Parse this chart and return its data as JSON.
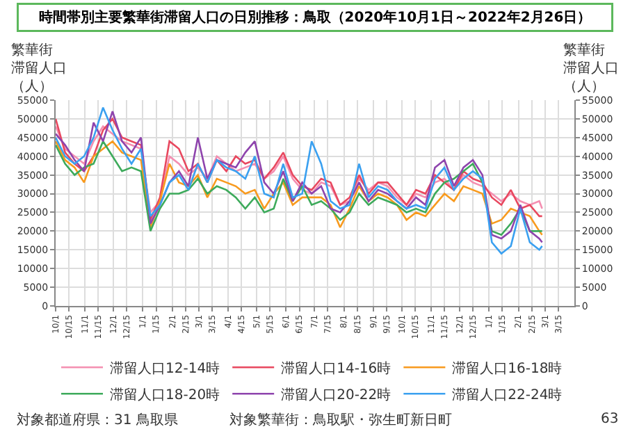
{
  "chart_data": {
    "type": "line",
    "title": "時間帯別主要繁華街滞留人口の日別推移：鳥取（2020年10月1日～2022年2月26日）",
    "ylabel": "繁華街滞留人口（人）",
    "y2label": "繁華街滞留人口（人）",
    "x": [
      "2020-10-01",
      "2020-10-11",
      "2020-10-21",
      "2020-10-31",
      "2020-11-10",
      "2020-11-20",
      "2020-11-30",
      "2020-12-10",
      "2020-12-20",
      "2020-12-30",
      "2021-01-09",
      "2021-01-19",
      "2021-01-29",
      "2021-02-08",
      "2021-02-18",
      "2021-02-28",
      "2021-03-10",
      "2021-03-20",
      "2021-03-30",
      "2021-04-09",
      "2021-04-19",
      "2021-04-29",
      "2021-05-09",
      "2021-05-19",
      "2021-05-29",
      "2021-06-08",
      "2021-06-18",
      "2021-06-28",
      "2021-07-08",
      "2021-07-18",
      "2021-07-28",
      "2021-08-07",
      "2021-08-17",
      "2021-08-27",
      "2021-09-06",
      "2021-09-16",
      "2021-09-26",
      "2021-10-06",
      "2021-10-16",
      "2021-10-26",
      "2021-11-05",
      "2021-11-15",
      "2021-11-25",
      "2021-12-05",
      "2021-12-15",
      "2021-12-25",
      "2022-01-04",
      "2022-01-14",
      "2022-01-24",
      "2022-02-03",
      "2022-02-13",
      "2022-02-23",
      "2022-02-26"
    ],
    "series": [
      {
        "name": "滞留人口12-14時",
        "color": "#f48fb1",
        "values": [
          48000,
          42000,
          40000,
          38000,
          44000,
          48000,
          46000,
          44000,
          43000,
          42000,
          25000,
          28000,
          40000,
          38000,
          35000,
          37000,
          34000,
          40000,
          38000,
          36000,
          37000,
          38000,
          34000,
          36000,
          40000,
          34000,
          31000,
          30000,
          33000,
          32000,
          27000,
          28000,
          34000,
          31000,
          33000,
          32000,
          29000,
          27000,
          30000,
          29000,
          33000,
          34000,
          31000,
          35000,
          33000,
          32000,
          30000,
          28000,
          30000,
          28000,
          27000,
          28000,
          26000
        ]
      },
      {
        "name": "滞留人口14-16時",
        "color": "#e8485f",
        "values": [
          50000,
          41000,
          38000,
          36000,
          40000,
          47000,
          50000,
          45000,
          44000,
          43000,
          23000,
          29000,
          44000,
          42000,
          36000,
          38000,
          33000,
          39000,
          36000,
          40000,
          38000,
          39000,
          34000,
          37000,
          41000,
          35000,
          32000,
          31000,
          34000,
          33000,
          27000,
          29000,
          35000,
          30000,
          33000,
          33000,
          30000,
          27000,
          31000,
          30000,
          35000,
          33000,
          31000,
          36000,
          34000,
          33000,
          29000,
          27000,
          31000,
          26000,
          27000,
          24000,
          24000
        ]
      },
      {
        "name": "滞留人口16-18時",
        "color": "#f89a1e",
        "values": [
          44000,
          39000,
          37000,
          33000,
          40000,
          42000,
          44000,
          41000,
          40000,
          39000,
          21000,
          28000,
          38000,
          33000,
          32000,
          35000,
          29000,
          34000,
          33000,
          32000,
          30000,
          31000,
          26000,
          30000,
          33000,
          27000,
          29000,
          29000,
          29000,
          27000,
          21000,
          26000,
          32000,
          28000,
          30000,
          29000,
          27000,
          23000,
          25000,
          24000,
          27000,
          30000,
          28000,
          32000,
          31000,
          30000,
          22000,
          23000,
          26000,
          25000,
          24000,
          20000,
          19000
        ]
      },
      {
        "name": "滞留人口18-20時",
        "color": "#3daa5b",
        "values": [
          43000,
          38000,
          35000,
          37000,
          38000,
          44000,
          40000,
          36000,
          37000,
          36000,
          20000,
          26000,
          30000,
          30000,
          31000,
          34000,
          30000,
          32000,
          31000,
          29000,
          26000,
          29000,
          25000,
          26000,
          34000,
          28000,
          32000,
          27000,
          28000,
          26000,
          23000,
          25000,
          30000,
          27000,
          29000,
          28000,
          27000,
          25000,
          26000,
          25000,
          30000,
          33000,
          34000,
          36000,
          38000,
          33000,
          20000,
          19000,
          22000,
          26000,
          20000,
          20000,
          20000
        ]
      },
      {
        "name": "滞留人口20-22時",
        "color": "#8e44ad",
        "values": [
          46000,
          43000,
          39000,
          36000,
          49000,
          44000,
          52000,
          44000,
          41000,
          45000,
          22000,
          27000,
          33000,
          36000,
          32000,
          45000,
          34000,
          39000,
          38000,
          37000,
          41000,
          44000,
          33000,
          30000,
          36000,
          28000,
          33000,
          30000,
          32000,
          26000,
          25000,
          28000,
          33000,
          28000,
          31000,
          30000,
          28000,
          26000,
          29000,
          27000,
          37000,
          39000,
          32000,
          37000,
          39000,
          35000,
          19000,
          18000,
          20000,
          27000,
          20000,
          18000,
          17000
        ]
      },
      {
        "name": "滞留人口22-24時",
        "color": "#3aa0f0",
        "values": [
          45000,
          40000,
          38000,
          40000,
          45000,
          53000,
          47000,
          42000,
          38000,
          42000,
          24000,
          27000,
          33000,
          35000,
          31000,
          38000,
          33000,
          39000,
          37000,
          36000,
          34000,
          40000,
          30000,
          29000,
          38000,
          29000,
          30000,
          44000,
          38000,
          28000,
          26000,
          27000,
          38000,
          29000,
          32000,
          31000,
          28000,
          26000,
          27000,
          26000,
          34000,
          37000,
          31000,
          34000,
          36000,
          34000,
          17000,
          14000,
          16000,
          26000,
          17000,
          15000,
          16000
        ]
      }
    ],
    "xlim": [
      "2020-10-01",
      "2022-04-01"
    ],
    "xticks": [
      {
        "value": "2020-10-01",
        "label": "10/1"
      },
      {
        "value": "2020-10-15",
        "label": "10/15"
      },
      {
        "value": "2020-11-01",
        "label": "11/1"
      },
      {
        "value": "2020-11-15",
        "label": "11/15"
      },
      {
        "value": "2020-12-01",
        "label": "12/1"
      },
      {
        "value": "2020-12-15",
        "label": "12/15"
      },
      {
        "value": "2021-01-01",
        "label": "1/1"
      },
      {
        "value": "2021-01-15",
        "label": "1/15"
      },
      {
        "value": "2021-02-01",
        "label": "2/1"
      },
      {
        "value": "2021-02-15",
        "label": "2/15"
      },
      {
        "value": "2021-03-01",
        "label": "3/1"
      },
      {
        "value": "2021-03-15",
        "label": "3/15"
      },
      {
        "value": "2021-04-01",
        "label": "4/1"
      },
      {
        "value": "2021-04-15",
        "label": "4/15"
      },
      {
        "value": "2021-05-01",
        "label": "5/1"
      },
      {
        "value": "2021-05-15",
        "label": "5/15"
      },
      {
        "value": "2021-06-01",
        "label": "6/1"
      },
      {
        "value": "2021-06-15",
        "label": "6/15"
      },
      {
        "value": "2021-07-01",
        "label": "7/1"
      },
      {
        "value": "2021-07-15",
        "label": "7/15"
      },
      {
        "value": "2021-08-01",
        "label": "8/1"
      },
      {
        "value": "2021-08-15",
        "label": "8/15"
      },
      {
        "value": "2021-09-01",
        "label": "9/1"
      },
      {
        "value": "2021-09-15",
        "label": "9/15"
      },
      {
        "value": "2021-10-01",
        "label": "10/1"
      },
      {
        "value": "2021-10-15",
        "label": "10/15"
      },
      {
        "value": "2021-11-01",
        "label": "11/1"
      },
      {
        "value": "2021-11-15",
        "label": "11/15"
      },
      {
        "value": "2021-12-01",
        "label": "12/1"
      },
      {
        "value": "2021-12-15",
        "label": "12/15"
      },
      {
        "value": "2022-01-01",
        "label": "1/1"
      },
      {
        "value": "2022-01-15",
        "label": "1/15"
      },
      {
        "value": "2022-02-01",
        "label": "2/1"
      },
      {
        "value": "2022-02-15",
        "label": "2/15"
      },
      {
        "value": "2022-03-01",
        "label": "3/1"
      },
      {
        "value": "2022-03-15",
        "label": "3/15"
      }
    ],
    "ylim": [
      0,
      55000
    ],
    "yticks": [
      0,
      5000,
      10000,
      15000,
      20000,
      25000,
      30000,
      35000,
      40000,
      45000,
      50000,
      55000
    ],
    "y2lim": [
      0,
      55000
    ],
    "y2ticks": [
      0,
      5000,
      10000,
      15000,
      20000,
      25000,
      30000,
      35000,
      40000,
      45000,
      50000,
      55000
    ],
    "grid": true,
    "legend": "bottom",
    "marker": "none",
    "line_style": "solid",
    "annotations": [
      "対象都道府県：31 鳥取県",
      "対象繁華街：鳥取駅・弥生町新日町",
      "63"
    ]
  }
}
